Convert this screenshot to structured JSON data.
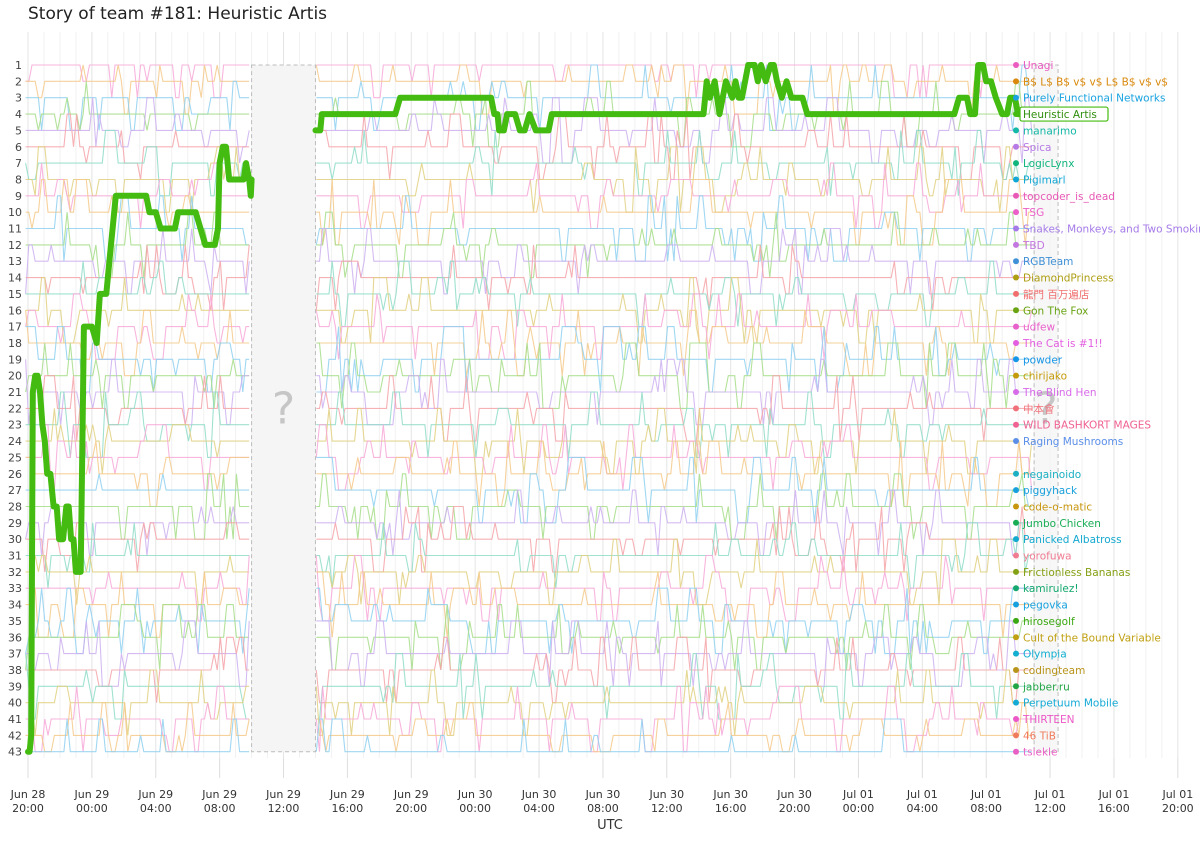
{
  "title": "Story of team #181: Heuristic Artis",
  "chart_data": {
    "type": "line",
    "title": "Story of team #181: Heuristic Artis",
    "xlabel": "UTC",
    "ylabel": "",
    "x_start": "Jun 28 20:00",
    "x_end": "Jul 01 20:00",
    "x_ticks": [
      {
        "h": 0,
        "date": "Jun 28",
        "time": "20:00"
      },
      {
        "h": 4,
        "date": "Jun 29",
        "time": "00:00"
      },
      {
        "h": 8,
        "date": "Jun 29",
        "time": "04:00"
      },
      {
        "h": 12,
        "date": "Jun 29",
        "time": "08:00"
      },
      {
        "h": 16,
        "date": "Jun 29",
        "time": "12:00"
      },
      {
        "h": 20,
        "date": "Jun 29",
        "time": "16:00"
      },
      {
        "h": 24,
        "date": "Jun 29",
        "time": "20:00"
      },
      {
        "h": 28,
        "date": "Jun 30",
        "time": "00:00"
      },
      {
        "h": 32,
        "date": "Jun 30",
        "time": "04:00"
      },
      {
        "h": 36,
        "date": "Jun 30",
        "time": "08:00"
      },
      {
        "h": 40,
        "date": "Jun 30",
        "time": "12:00"
      },
      {
        "h": 44,
        "date": "Jun 30",
        "time": "16:00"
      },
      {
        "h": 48,
        "date": "Jun 30",
        "time": "20:00"
      },
      {
        "h": 52,
        "date": "Jul 01",
        "time": "00:00"
      },
      {
        "h": 56,
        "date": "Jul 01",
        "time": "04:00"
      },
      {
        "h": 60,
        "date": "Jul 01",
        "time": "08:00"
      },
      {
        "h": 64,
        "date": "Jul 01",
        "time": "12:00"
      },
      {
        "h": 68,
        "date": "Jul 01",
        "time": "16:00"
      },
      {
        "h": 72,
        "date": "Jul 01",
        "time": "20:00"
      }
    ],
    "y_range": [
      1,
      43
    ],
    "ranks": [
      1,
      2,
      3,
      4,
      5,
      6,
      7,
      8,
      9,
      10,
      11,
      12,
      13,
      14,
      15,
      16,
      17,
      18,
      19,
      20,
      21,
      22,
      23,
      24,
      25,
      26,
      27,
      28,
      29,
      30,
      31,
      32,
      33,
      34,
      35,
      36,
      37,
      38,
      39,
      40,
      41,
      42,
      43
    ],
    "unknown_periods": [
      {
        "start_h": 14.0,
        "end_h": 18.0,
        "label": "?"
      },
      {
        "start_h": 63.0,
        "end_h": 64.5,
        "label": "?"
      }
    ],
    "highlight": {
      "name": "Heuristic Artis",
      "color": "#44bb11",
      "segments": [
        [
          [
            0,
            43
          ],
          [
            0.1,
            43
          ],
          [
            0.2,
            42
          ],
          [
            0.3,
            21
          ],
          [
            0.45,
            20
          ],
          [
            0.6,
            20
          ],
          [
            0.75,
            21
          ],
          [
            0.9,
            23
          ],
          [
            1.05,
            24
          ],
          [
            1.2,
            26
          ],
          [
            1.4,
            26
          ],
          [
            1.6,
            28
          ],
          [
            1.8,
            28
          ],
          [
            1.95,
            30
          ],
          [
            2.2,
            30
          ],
          [
            2.4,
            28
          ],
          [
            2.55,
            28
          ],
          [
            2.7,
            30
          ],
          [
            2.85,
            30
          ],
          [
            3.0,
            32
          ],
          [
            3.3,
            32
          ],
          [
            3.5,
            17
          ],
          [
            4.0,
            17
          ],
          [
            4.3,
            18
          ],
          [
            4.5,
            15
          ],
          [
            4.9,
            15
          ],
          [
            5.1,
            13
          ],
          [
            5.5,
            9
          ],
          [
            6.0,
            9
          ],
          [
            6.5,
            9
          ],
          [
            7.4,
            9
          ],
          [
            7.6,
            10
          ],
          [
            7.8,
            10
          ],
          [
            8.0,
            10
          ],
          [
            8.3,
            11
          ],
          [
            8.5,
            11
          ],
          [
            8.7,
            11
          ],
          [
            9.0,
            11
          ],
          [
            9.2,
            11
          ],
          [
            9.4,
            10
          ],
          [
            9.8,
            10
          ],
          [
            10.1,
            10
          ],
          [
            10.5,
            10
          ],
          [
            10.8,
            11
          ],
          [
            11.1,
            12
          ],
          [
            11.4,
            12
          ],
          [
            11.7,
            12
          ],
          [
            11.9,
            11
          ],
          [
            12.0,
            7
          ],
          [
            12.2,
            6
          ],
          [
            12.4,
            6
          ],
          [
            12.6,
            8
          ],
          [
            13.0,
            8
          ],
          [
            13.5,
            8
          ],
          [
            13.65,
            7
          ],
          [
            13.85,
            8
          ],
          [
            13.95,
            9
          ],
          [
            14.0,
            8
          ]
        ],
        [
          [
            18.0,
            5
          ],
          [
            18.3,
            5
          ],
          [
            18.4,
            4
          ],
          [
            20.0,
            4
          ],
          [
            23.0,
            4
          ],
          [
            23.3,
            3
          ],
          [
            26.0,
            3
          ],
          [
            28.0,
            3
          ],
          [
            29.0,
            3
          ],
          [
            29.2,
            4
          ],
          [
            29.4,
            4
          ],
          [
            29.5,
            5
          ],
          [
            29.8,
            5
          ],
          [
            30.0,
            4
          ],
          [
            30.5,
            4
          ],
          [
            30.8,
            5
          ],
          [
            31.1,
            5
          ],
          [
            31.4,
            4
          ],
          [
            31.8,
            5
          ],
          [
            32.6,
            5
          ],
          [
            32.8,
            4
          ],
          [
            35.0,
            4
          ],
          [
            38.0,
            4
          ],
          [
            40.0,
            4
          ],
          [
            42.0,
            4
          ],
          [
            42.3,
            4
          ],
          [
            42.5,
            2
          ],
          [
            42.7,
            3
          ],
          [
            43.0,
            2
          ],
          [
            43.3,
            4
          ],
          [
            43.7,
            2
          ],
          [
            44.1,
            3
          ],
          [
            44.3,
            2
          ],
          [
            44.5,
            3
          ],
          [
            44.7,
            3
          ],
          [
            44.9,
            2
          ],
          [
            45.1,
            1
          ],
          [
            45.5,
            1
          ],
          [
            45.7,
            2
          ],
          [
            45.9,
            1
          ],
          [
            46.2,
            2
          ],
          [
            46.5,
            1
          ],
          [
            46.7,
            1
          ],
          [
            46.9,
            2
          ],
          [
            47.2,
            3
          ],
          [
            47.5,
            2
          ],
          [
            47.8,
            3
          ],
          [
            48.2,
            3
          ],
          [
            48.5,
            3
          ],
          [
            48.8,
            4
          ],
          [
            51.0,
            4
          ],
          [
            55.0,
            4
          ],
          [
            57.0,
            4
          ],
          [
            57.5,
            4
          ],
          [
            58.0,
            4
          ],
          [
            58.3,
            3
          ],
          [
            58.8,
            3
          ],
          [
            59.0,
            4
          ],
          [
            59.3,
            4
          ],
          [
            59.5,
            1
          ],
          [
            59.8,
            1
          ],
          [
            60.0,
            2
          ],
          [
            60.3,
            2
          ],
          [
            60.6,
            3
          ],
          [
            61.0,
            4
          ],
          [
            61.3,
            4
          ],
          [
            61.5,
            3
          ],
          [
            61.8,
            3
          ],
          [
            62.0,
            4
          ],
          [
            62.6,
            4
          ],
          [
            63.0,
            4
          ]
        ]
      ]
    },
    "teams": [
      {
        "rank": 1,
        "name": "Unagi",
        "color": "#ea5cc0"
      },
      {
        "rank": 2,
        "name": "B$ L$ B$ v$ v$ L$ B$ v$ v$",
        "color": "#d9880b"
      },
      {
        "rank": 3,
        "name": "Purely Functional Networks",
        "color": "#1aa3e0"
      },
      {
        "rank": 4,
        "name": "Heuristic Artis",
        "color": "#44bb11"
      },
      {
        "rank": 5,
        "name": "manarimo",
        "color": "#14b8a6"
      },
      {
        "rank": 6,
        "name": "Spica",
        "color": "#b57ae6"
      },
      {
        "rank": 7,
        "name": "LogicLynx",
        "color": "#0fb57c"
      },
      {
        "rank": 8,
        "name": "Pigimarl",
        "color": "#10a7d6"
      },
      {
        "rank": 9,
        "name": "topcoder_is_dead",
        "color": "#e858b5"
      },
      {
        "rank": 10,
        "name": "TSG",
        "color": "#ec5fc8"
      },
      {
        "rank": 11,
        "name": "Snakes, Monkeys, and Two Smoking Lambdas",
        "color": "#a57be8"
      },
      {
        "rank": 12,
        "name": "TBD",
        "color": "#c377e0"
      },
      {
        "rank": 13,
        "name": "RGBTeam",
        "color": "#3f90d6"
      },
      {
        "rank": 14,
        "name": "DiamondPrincess",
        "color": "#ad9e12"
      },
      {
        "rank": 15,
        "name": "龍門 百万遍店",
        "color": "#f06e6e"
      },
      {
        "rank": 16,
        "name": "Gon The Fox",
        "color": "#68a312"
      },
      {
        "rank": 17,
        "name": "udfew",
        "color": "#e860cc"
      },
      {
        "rank": 18,
        "name": "The Cat is #1!!",
        "color": "#e35ee0"
      },
      {
        "rank": 19,
        "name": "powder",
        "color": "#1596e6"
      },
      {
        "rank": 20,
        "name": "chirijako",
        "color": "#c49a0a"
      },
      {
        "rank": 21,
        "name": "The Blind Hen",
        "color": "#d76be8"
      },
      {
        "rank": 22,
        "name": "中本會",
        "color": "#f0717a"
      },
      {
        "rank": 23,
        "name": "WILD BASHKORT MAGES",
        "color": "#f06292"
      },
      {
        "rank": 24,
        "name": "Raging Mushrooms",
        "color": "#5a8ee8"
      },
      {
        "rank": 25,
        "name": "",
        "color": "#d8d8d8"
      },
      {
        "rank": 26,
        "name": "negainoido",
        "color": "#1ab0c2"
      },
      {
        "rank": 27,
        "name": "piggyhack",
        "color": "#18a0dc"
      },
      {
        "rank": 28,
        "name": "code-o-matic",
        "color": "#c8960e"
      },
      {
        "rank": 29,
        "name": "Jumbo Chicken",
        "color": "#18ad55"
      },
      {
        "rank": 30,
        "name": "Panicked Albatross",
        "color": "#14a9d0"
      },
      {
        "rank": 31,
        "name": "yorofuwa",
        "color": "#f07c92"
      },
      {
        "rank": 32,
        "name": "Frictionless Bananas",
        "color": "#84a014"
      },
      {
        "rank": 33,
        "name": "kamirulez!",
        "color": "#14a86e"
      },
      {
        "rank": 34,
        "name": "pegovka",
        "color": "#16a1de"
      },
      {
        "rank": 35,
        "name": "hirosegolf",
        "color": "#3aa812"
      },
      {
        "rank": 36,
        "name": "Cult of the Bound Variable",
        "color": "#c0a012"
      },
      {
        "rank": 37,
        "name": "Olympia",
        "color": "#12aed0"
      },
      {
        "rank": 38,
        "name": "codingteam",
        "color": "#b8941a"
      },
      {
        "rank": 39,
        "name": "jabber.ru",
        "color": "#22a545"
      },
      {
        "rank": 40,
        "name": "Perpetuum Mobile",
        "color": "#14aad6"
      },
      {
        "rank": 41,
        "name": "THIRTEEN",
        "color": "#ec58c8"
      },
      {
        "rank": 42,
        "name": "46 TiB",
        "color": "#f07b5c"
      },
      {
        "rank": 43,
        "name": "tsiekle",
        "color": "#e860c5"
      }
    ],
    "background_palette": [
      "#f7a8d8",
      "#f5c98a",
      "#8fd0f0",
      "#a6dd88",
      "#cdb0f0",
      "#f5a3a8",
      "#8fdcc8",
      "#e0d080"
    ]
  }
}
